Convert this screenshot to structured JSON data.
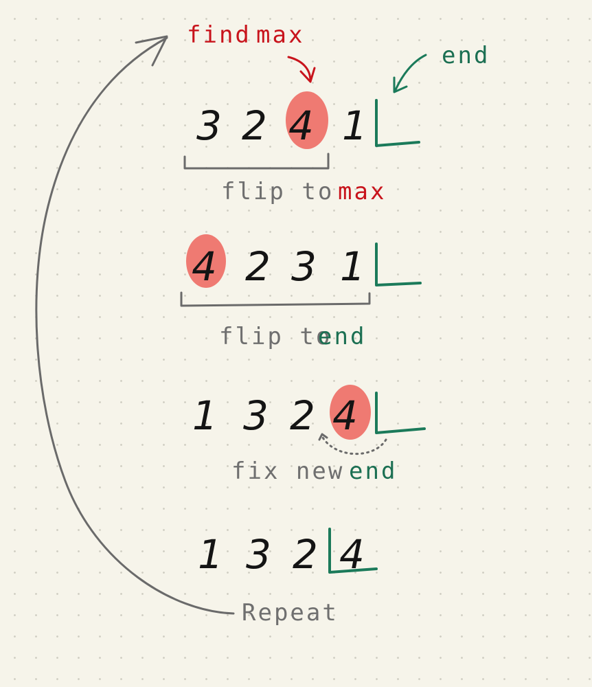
{
  "colors": {
    "background": "#f6f4ea",
    "highlight": "#ef7a72",
    "red_text": "#c8141c",
    "green_text": "#1b6f52",
    "gray_text": "#6f6f6f",
    "ink": "#141414"
  },
  "callouts": {
    "find": "find",
    "max": "max",
    "end": "end"
  },
  "rows": [
    {
      "digits": [
        "3",
        "2",
        "4",
        "1"
      ],
      "highlight_index": 2,
      "caption_gray": "flip to",
      "caption_color_word": "max",
      "caption_color": "red"
    },
    {
      "digits": [
        "4",
        "2",
        "3",
        "1"
      ],
      "highlight_index": 0,
      "caption_gray": "flip to",
      "caption_color_word": "end",
      "caption_color": "green"
    },
    {
      "digits": [
        "1",
        "3",
        "2",
        "4"
      ],
      "highlight_index": 3,
      "caption_gray": "fix new",
      "caption_color_word": "end",
      "caption_color": "green"
    },
    {
      "digits": [
        "1",
        "3",
        "2",
        "4"
      ],
      "highlight_index": null
    }
  ],
  "repeat_label": "Repeat",
  "icons": [
    "curved-arrow-icon",
    "bracket-icon",
    "end-marker-icon"
  ]
}
